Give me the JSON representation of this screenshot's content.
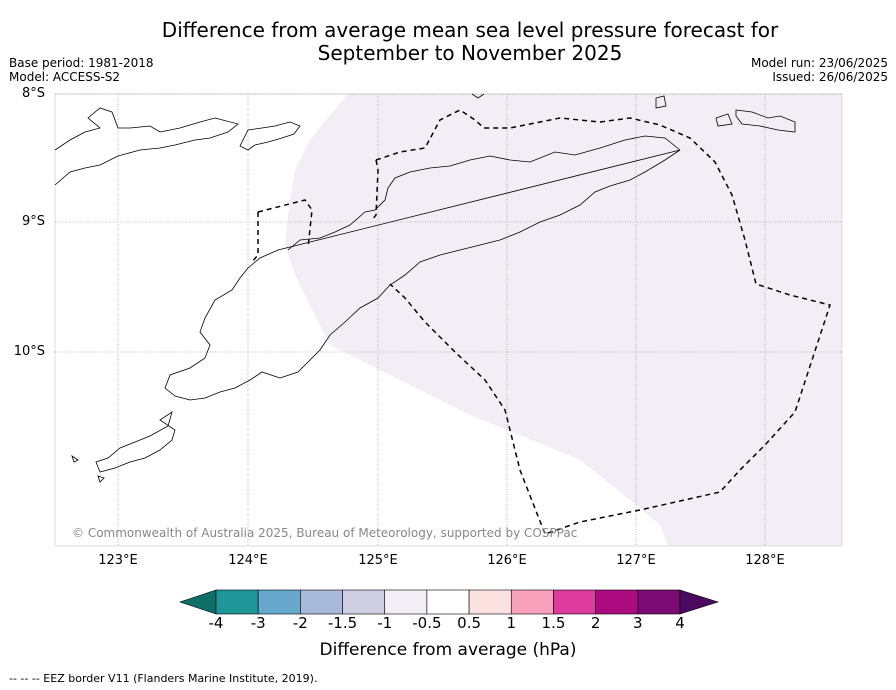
{
  "title_line1": "Difference from average mean sea level pressure forecast for",
  "title_line2": "September to November 2025",
  "base_period": "Base period: 1981-2018",
  "model": "Model: ACCESS-S2",
  "model_run": "Model run: 23/06/2025",
  "issued": "Issued: 26/06/2025",
  "lat_labels": [
    "8°S",
    "9°S",
    "10°S"
  ],
  "lon_labels": [
    "123°E",
    "124°E",
    "125°E",
    "126°E",
    "127°E",
    "128°E"
  ],
  "copyright": "© Commonwealth of Australia 2025, Bureau of Meteorology, supported by COSPPac",
  "colorbar": {
    "title": "Difference from average (hPa)",
    "ticks": [
      "-4",
      "-3",
      "-2",
      "-1.5",
      "-1",
      "-0.5",
      "0.5",
      "1",
      "1.5",
      "2",
      "3",
      "4"
    ],
    "colors": [
      "#0e6e68",
      "#1f9698",
      "#66a9cc",
      "#a9b9da",
      "#cfcfe4",
      "#f3eef6",
      "#ffffff",
      "#fde0e0",
      "#f8a0bc",
      "#dc3a9c",
      "#ad0a80",
      "#7c0a75",
      "#4b0a60"
    ]
  },
  "footnote": "-- -- -- EEZ border V11 (Flanders Marine Institute, 2019)."
}
